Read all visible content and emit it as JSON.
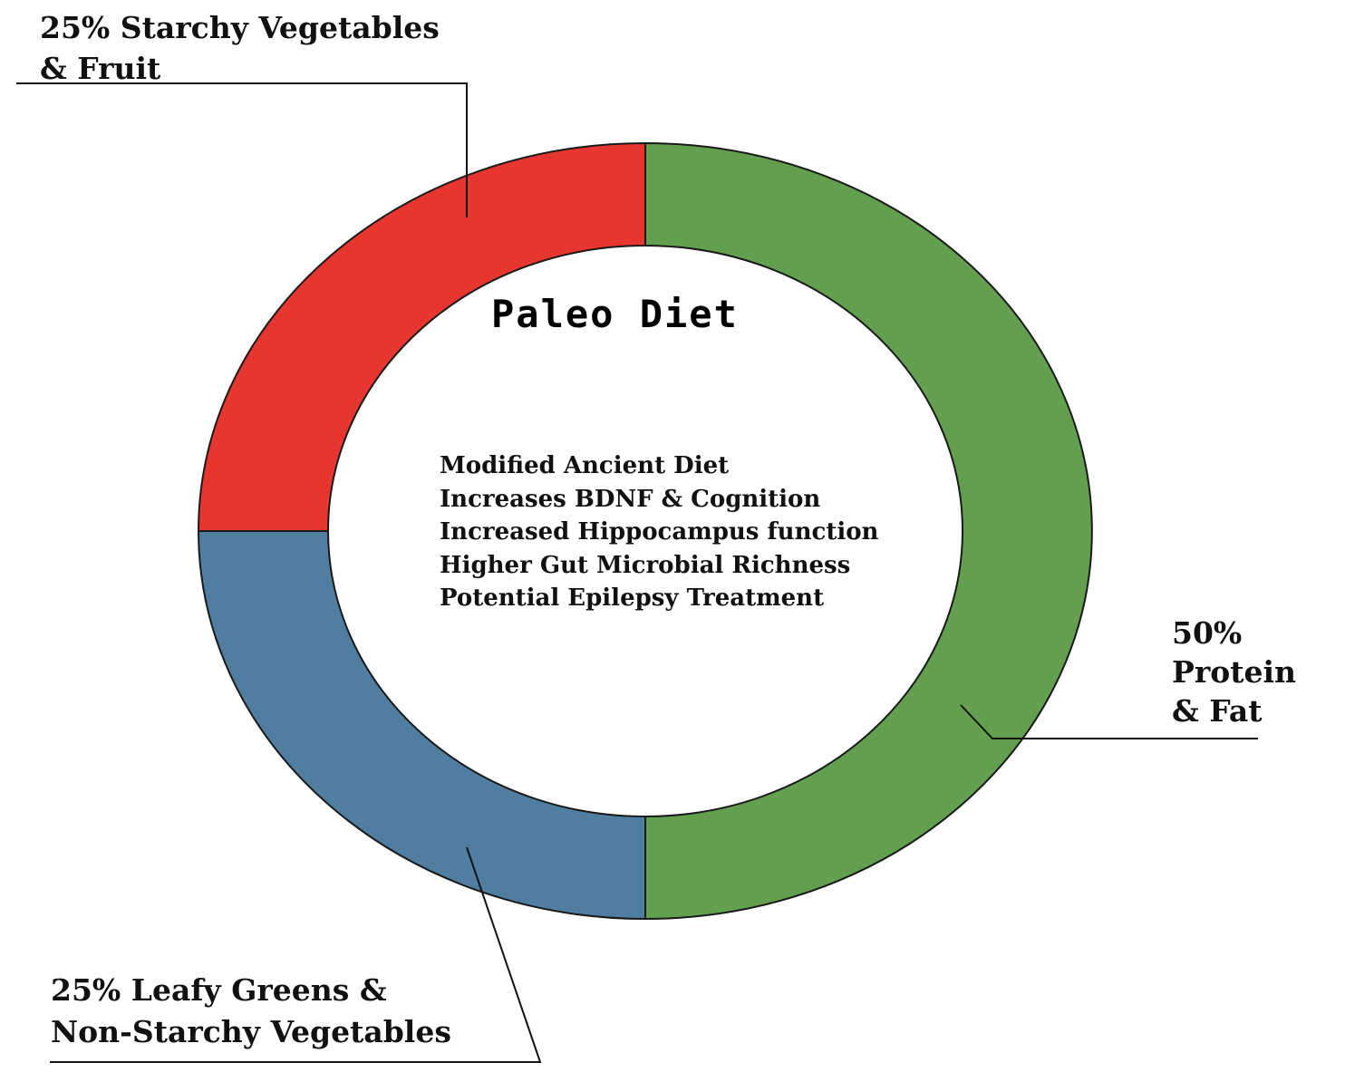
{
  "chart_data": {
    "type": "donut",
    "title": "Paleo Diet",
    "categories": [
      "Protein & Fat",
      "Leafy Greens & Non-Starchy Vegetables",
      "Starchy Vegetables & Fruit"
    ],
    "values": [
      50,
      25,
      25
    ],
    "unit": "%",
    "colors": [
      "#62a04f",
      "#4f7ea1",
      "#e6362f"
    ],
    "labels": {
      "starchy": "25% Starchy Vegetables\n& Fruit",
      "protein": "50%\nProtein\n& Fat",
      "leafy": "25% Leafy Greens &\nNon-Starchy Vegetables"
    },
    "center_notes": [
      "Modified Ancient Diet",
      "Increases BDNF & Cognition",
      "Increased Hippocampus function",
      "Higher Gut Microbial Richness",
      "Potential Epilepsy Treatment"
    ]
  }
}
